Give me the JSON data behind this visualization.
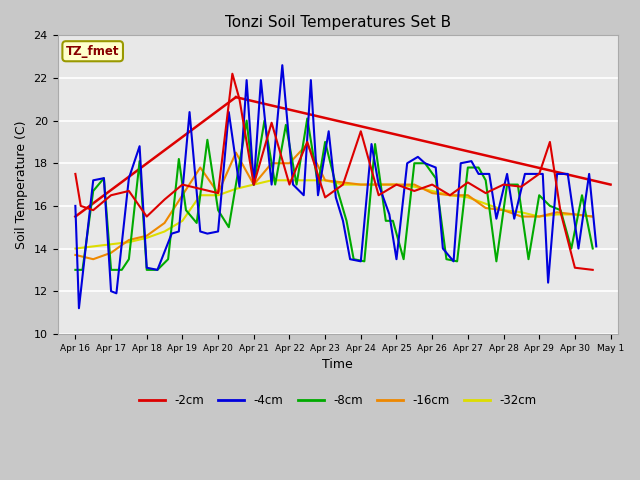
{
  "title": "Tonzi Soil Temperatures Set B",
  "xlabel": "Time",
  "ylabel": "Soil Temperature (C)",
  "ylim": [
    10,
    24
  ],
  "yticks": [
    10,
    12,
    14,
    16,
    18,
    20,
    22,
    24
  ],
  "annotation_label": "TZ_fmet",
  "annotation_color": "#880000",
  "annotation_bg": "#ffffcc",
  "annotation_border": "#999900",
  "legend_entries": [
    "-2cm",
    "-4cm",
    "-8cm",
    "-16cm",
    "-32cm"
  ],
  "line_colors": {
    "-2cm": "#dd0000",
    "-4cm": "#0000dd",
    "-8cm": "#00aa00",
    "-16cm": "#ee8800",
    "-32cm": "#dddd00"
  },
  "fig_bg": "#c8c8c8",
  "plot_bg": "#e8e8e8",
  "grid_color": "#ffffff",
  "x_lim": [
    15.5,
    31.2
  ],
  "x_tick_days": [
    16,
    17,
    18,
    19,
    20,
    21,
    22,
    23,
    24,
    25,
    26,
    27,
    28,
    29,
    30,
    31
  ],
  "x_tick_labels": [
    "Apr 16",
    "Apr 17",
    "Apr 18",
    "Apr 19",
    "Apr 20",
    "Apr 21",
    "Apr 22",
    "Apr 23",
    "Apr 24",
    "Apr 25",
    "Apr 26",
    "Apr 27",
    "Apr 28",
    "Apr 29",
    "Apr 30",
    "May 1"
  ],
  "trend_segments": [
    [
      [
        16.0,
        15.5
      ],
      [
        20.5,
        21.1
      ]
    ],
    [
      [
        20.5,
        21.1
      ],
      [
        31.0,
        17.0
      ]
    ]
  ],
  "data_2cm_x": [
    16.0,
    16.15,
    16.5,
    17.0,
    17.5,
    18.0,
    18.5,
    19.0,
    19.5,
    20.0,
    20.4,
    20.6,
    21.0,
    21.5,
    22.0,
    22.5,
    23.0,
    23.5,
    24.0,
    24.5,
    25.0,
    25.5,
    26.0,
    26.5,
    27.0,
    27.5,
    28.0,
    28.5,
    29.0,
    29.3,
    29.6,
    30.0,
    30.5
  ],
  "data_2cm_y": [
    17.5,
    16.0,
    15.8,
    16.5,
    16.7,
    15.5,
    16.3,
    17.0,
    16.8,
    16.6,
    22.2,
    21.0,
    17.0,
    19.9,
    17.0,
    19.0,
    16.4,
    17.0,
    19.5,
    16.5,
    17.0,
    16.7,
    17.0,
    16.5,
    17.1,
    16.6,
    17.0,
    16.9,
    17.5,
    19.0,
    15.7,
    13.1,
    13.0
  ],
  "data_4cm_x": [
    16.0,
    16.1,
    16.5,
    16.8,
    17.0,
    17.15,
    17.5,
    17.8,
    18.0,
    18.3,
    18.7,
    18.9,
    19.2,
    19.5,
    19.7,
    20.0,
    20.3,
    20.6,
    20.8,
    21.0,
    21.2,
    21.5,
    21.8,
    22.1,
    22.4,
    22.6,
    22.8,
    23.1,
    23.3,
    23.5,
    23.7,
    24.0,
    24.3,
    24.5,
    24.8,
    25.0,
    25.3,
    25.6,
    25.8,
    26.1,
    26.3,
    26.6,
    26.8,
    27.1,
    27.3,
    27.6,
    27.8,
    28.1,
    28.3,
    28.6,
    28.8,
    29.1,
    29.25,
    29.5,
    29.8,
    30.1,
    30.4,
    30.6
  ],
  "data_4cm_y": [
    16.0,
    11.2,
    17.2,
    17.3,
    12.0,
    11.9,
    17.3,
    18.8,
    13.1,
    13.0,
    14.7,
    14.8,
    20.4,
    14.8,
    14.7,
    14.8,
    20.4,
    16.9,
    21.9,
    17.0,
    21.9,
    17.0,
    22.6,
    17.0,
    16.5,
    21.9,
    16.5,
    19.5,
    16.4,
    15.3,
    13.5,
    13.4,
    18.9,
    17.0,
    15.6,
    13.5,
    18.0,
    18.3,
    18.0,
    17.8,
    14.0,
    13.4,
    18.0,
    18.1,
    17.5,
    17.5,
    15.4,
    17.5,
    15.4,
    17.5,
    17.5,
    17.5,
    12.4,
    17.5,
    17.5,
    14.0,
    17.5,
    14.1
  ],
  "data_8cm_x": [
    16.0,
    16.2,
    16.5,
    16.8,
    17.0,
    17.3,
    17.5,
    17.8,
    18.0,
    18.3,
    18.6,
    18.9,
    19.1,
    19.4,
    19.7,
    20.0,
    20.3,
    20.5,
    20.8,
    21.0,
    21.3,
    21.6,
    21.9,
    22.2,
    22.5,
    22.8,
    23.0,
    23.3,
    23.6,
    23.8,
    24.1,
    24.4,
    24.7,
    24.9,
    25.2,
    25.5,
    25.8,
    26.1,
    26.4,
    26.7,
    27.0,
    27.3,
    27.5,
    27.8,
    28.1,
    28.4,
    28.7,
    29.0,
    29.3,
    29.6,
    29.9,
    30.2,
    30.5
  ],
  "data_8cm_y": [
    13.0,
    13.0,
    16.7,
    17.3,
    13.0,
    13.0,
    13.5,
    18.1,
    13.0,
    13.0,
    13.5,
    18.2,
    15.8,
    15.2,
    19.1,
    15.8,
    15.0,
    17.0,
    20.0,
    17.0,
    20.0,
    17.0,
    19.8,
    17.0,
    20.1,
    17.0,
    19.0,
    17.0,
    15.3,
    13.5,
    13.4,
    18.9,
    15.3,
    15.3,
    13.5,
    18.0,
    18.0,
    17.3,
    13.5,
    13.4,
    17.8,
    17.8,
    17.2,
    13.4,
    17.0,
    17.0,
    13.5,
    16.5,
    16.0,
    15.8,
    14.0,
    16.5,
    14.0
  ],
  "data_16cm_x": [
    16.0,
    16.5,
    17.0,
    17.5,
    18.0,
    18.5,
    19.0,
    19.5,
    20.0,
    20.5,
    21.0,
    21.5,
    22.0,
    22.5,
    23.0,
    23.5,
    24.0,
    24.5,
    25.0,
    25.5,
    26.0,
    26.5,
    27.0,
    27.5,
    28.0,
    28.5,
    29.0,
    29.5,
    30.0,
    30.5
  ],
  "data_16cm_y": [
    13.7,
    13.5,
    13.8,
    14.4,
    14.6,
    15.2,
    16.5,
    17.8,
    16.6,
    18.5,
    17.0,
    18.0,
    18.0,
    18.9,
    17.2,
    17.1,
    17.0,
    17.0,
    17.0,
    17.0,
    16.6,
    16.5,
    16.5,
    15.9,
    15.8,
    15.5,
    15.5,
    15.7,
    15.6,
    15.5
  ],
  "data_32cm_x": [
    16.0,
    16.5,
    17.0,
    17.5,
    18.0,
    18.5,
    19.0,
    19.5,
    20.0,
    20.5,
    21.0,
    21.5,
    22.0,
    22.5,
    23.0,
    23.5,
    24.0,
    24.5,
    25.0,
    25.5,
    26.0,
    26.5,
    27.0,
    27.5,
    28.0,
    28.5,
    29.0,
    29.5,
    30.0,
    30.5
  ],
  "data_32cm_y": [
    14.0,
    14.1,
    14.2,
    14.3,
    14.5,
    14.8,
    15.3,
    16.5,
    16.5,
    16.8,
    17.0,
    17.2,
    17.2,
    17.2,
    17.2,
    17.0,
    17.0,
    17.0,
    17.0,
    16.9,
    16.7,
    16.5,
    16.4,
    16.1,
    15.8,
    15.7,
    15.5,
    15.6,
    15.6,
    15.5
  ]
}
